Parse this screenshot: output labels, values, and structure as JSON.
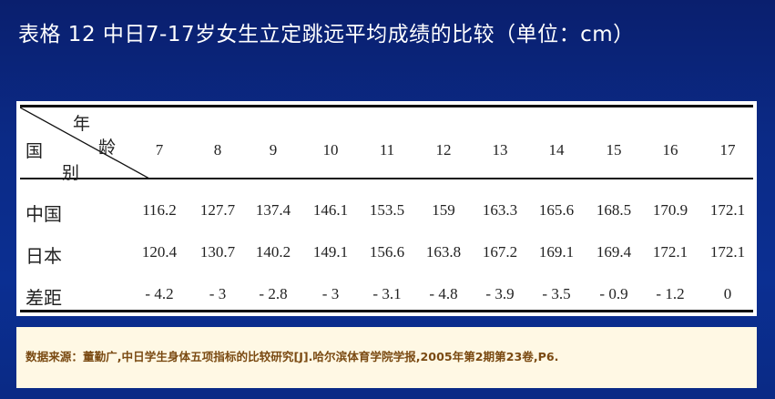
{
  "title": "表格 12  中日7-17岁女生立定跳远平均成绩的比较（单位：cm）",
  "table": {
    "header_top": "年",
    "header_age": "龄",
    "header_country": "国",
    "header_bie": "别",
    "ages": [
      "7",
      "8",
      "9",
      "10",
      "11",
      "12",
      "13",
      "14",
      "15",
      "16",
      "17"
    ],
    "rows": [
      {
        "label": "中国",
        "values": [
          "116.2",
          "127.7",
          "137.4",
          "146.1",
          "153.5",
          "159",
          "163.3",
          "165.6",
          "168.5",
          "170.9",
          "172.1"
        ]
      },
      {
        "label": "日本",
        "values": [
          "120.4",
          "130.7",
          "140.2",
          "149.1",
          "156.6",
          "163.8",
          "167.2",
          "169.1",
          "169.4",
          "172.1",
          "172.1"
        ]
      },
      {
        "label": "差距",
        "values": [
          "- 4.2",
          "- 3",
          "- 2.8",
          "- 3",
          "- 3.1",
          "- 4.8",
          "- 3.9",
          "- 3.5",
          "- 0.9",
          "- 1.2",
          "0"
        ]
      }
    ]
  },
  "source": "数据来源：董勤广,中日学生身体五项指标的比较研究[J].哈尔滨体育学院学报,2005年第2期第23卷,P6."
}
